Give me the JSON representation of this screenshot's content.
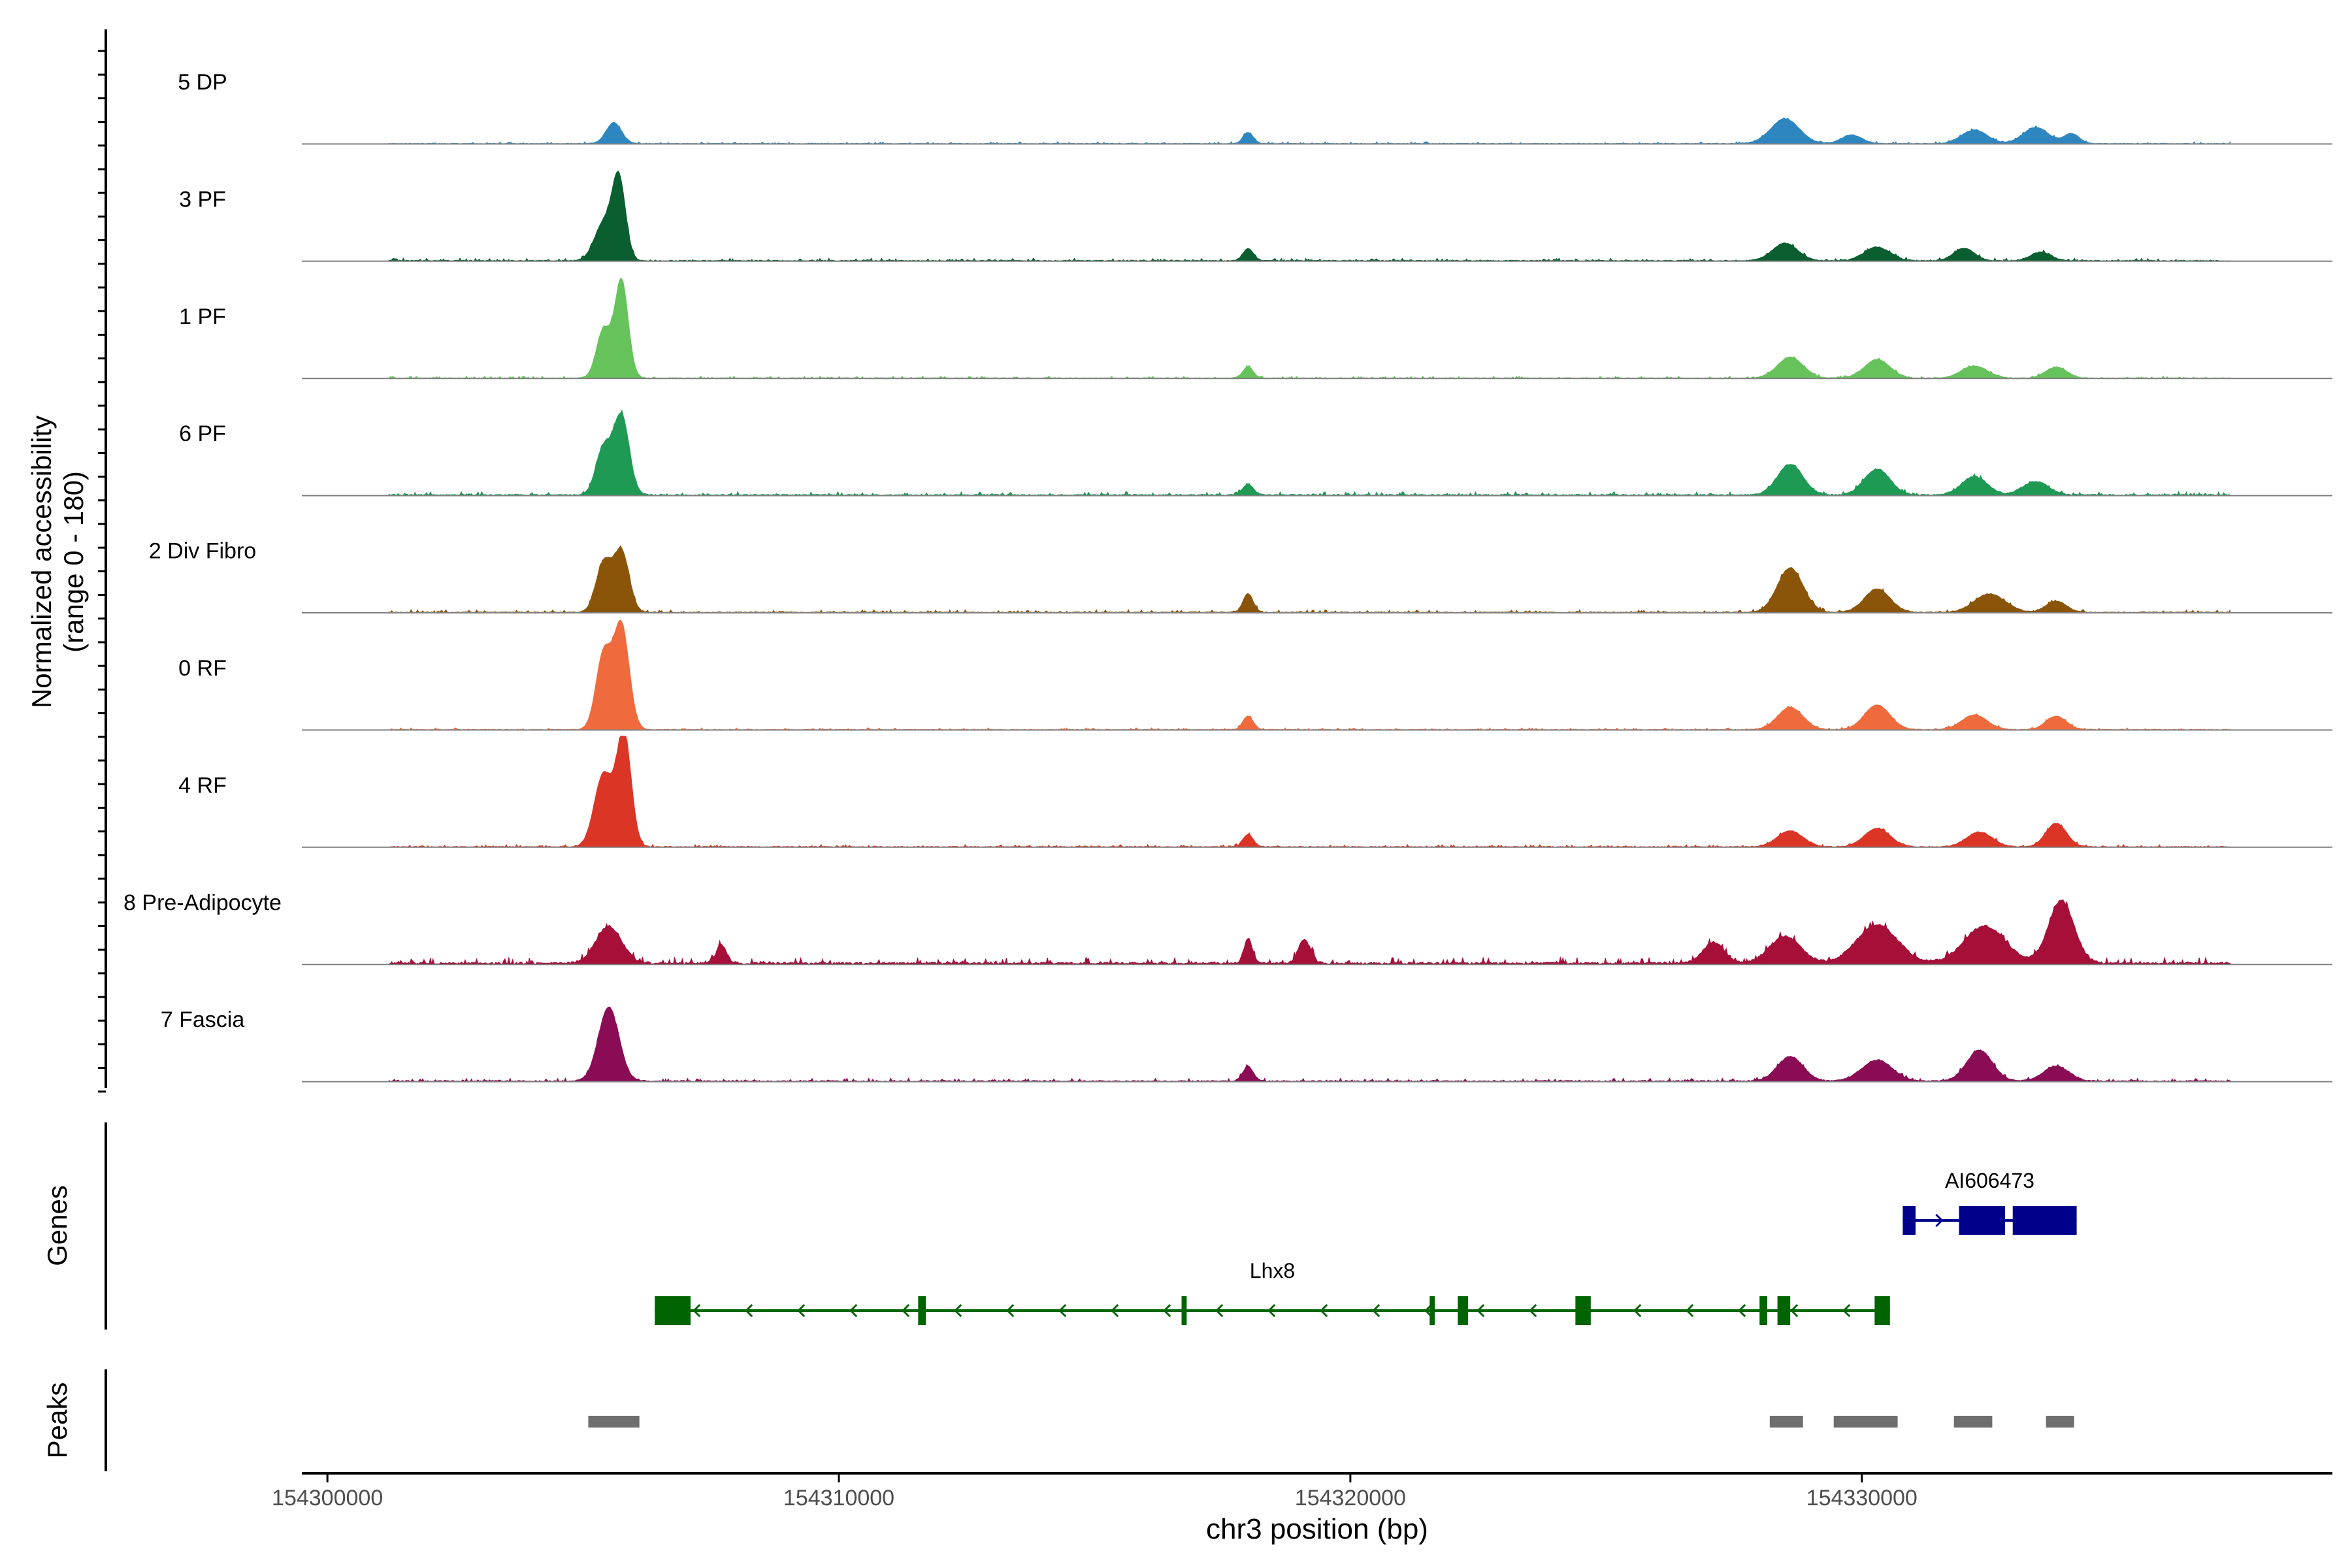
{
  "chart_data": {
    "type": "area",
    "title": "",
    "xlabel": "chr3 position (bp)",
    "ylabel_line1": "Normalized accessibility",
    "ylabel_line2": "(range 0 - 180)",
    "ylim": [
      0,
      180
    ],
    "xlim": [
      154299500,
      154339200
    ],
    "xticks": [
      154300000,
      154310000,
      154320000,
      154330000
    ],
    "xtick_labels": [
      "154300000",
      "154310000",
      "154320000",
      "154330000"
    ],
    "region": {
      "start": 154299500,
      "end": 154337200
    },
    "genes_label": "Genes",
    "peaks_label": "Peaks",
    "tracks": [
      {
        "name": "5 DP",
        "color": "#2e86c1",
        "peaks": [
          [
            154305600,
            34,
            150
          ],
          [
            154318000,
            18,
            100
          ],
          [
            154328500,
            40,
            280
          ],
          [
            154329800,
            14,
            200
          ],
          [
            154332200,
            22,
            250
          ],
          [
            154333400,
            26,
            250
          ],
          [
            154334100,
            16,
            150
          ]
        ],
        "noise": 5
      },
      {
        "name": "3 PF",
        "color": "#0b5e2f",
        "peaks": [
          [
            154305400,
            60,
            180
          ],
          [
            154305700,
            128,
            130
          ],
          [
            154318000,
            20,
            100
          ],
          [
            154328500,
            28,
            250
          ],
          [
            154330300,
            22,
            250
          ],
          [
            154332000,
            20,
            200
          ],
          [
            154333500,
            14,
            200
          ]
        ],
        "noise": 7
      },
      {
        "name": "1 PF",
        "color": "#66c25b",
        "peaks": [
          [
            154305400,
            78,
            140
          ],
          [
            154305750,
            158,
            130
          ],
          [
            154318000,
            18,
            100
          ],
          [
            154328600,
            34,
            250
          ],
          [
            154330300,
            30,
            250
          ],
          [
            154332200,
            20,
            250
          ],
          [
            154333800,
            18,
            200
          ]
        ],
        "noise": 5
      },
      {
        "name": "6 PF",
        "color": "#1f9a55",
        "peaks": [
          [
            154305400,
            76,
            150
          ],
          [
            154305750,
            128,
            150
          ],
          [
            154318000,
            18,
            100
          ],
          [
            154328600,
            50,
            250
          ],
          [
            154330300,
            42,
            250
          ],
          [
            154332200,
            30,
            250
          ],
          [
            154333400,
            22,
            250
          ]
        ],
        "noise": 9
      },
      {
        "name": "2 Div Fibro",
        "color": "#8b5509",
        "peaks": [
          [
            154305400,
            80,
            150
          ],
          [
            154305750,
            98,
            150
          ],
          [
            154318000,
            30,
            100
          ],
          [
            154328600,
            72,
            250
          ],
          [
            154330300,
            38,
            250
          ],
          [
            154332500,
            30,
            300
          ],
          [
            154333800,
            18,
            200
          ]
        ],
        "noise": 7
      },
      {
        "name": "0 RF",
        "color": "#ef6a3c",
        "peaks": [
          [
            154305400,
            122,
            150
          ],
          [
            154305750,
            168,
            150
          ],
          [
            154318000,
            22,
            100
          ],
          [
            154328600,
            36,
            250
          ],
          [
            154330300,
            40,
            250
          ],
          [
            154332200,
            24,
            250
          ],
          [
            154333800,
            22,
            200
          ]
        ],
        "noise": 5
      },
      {
        "name": "4 RF",
        "color": "#db3526",
        "peaks": [
          [
            154305400,
            118,
            180
          ],
          [
            154305800,
            180,
            140
          ],
          [
            154318000,
            20,
            100
          ],
          [
            154328600,
            26,
            250
          ],
          [
            154330300,
            30,
            250
          ],
          [
            154332300,
            24,
            250
          ],
          [
            154333800,
            38,
            200
          ]
        ],
        "noise": 6
      },
      {
        "name": "8 Pre-Adipocyte",
        "color": "#a50f38",
        "peaks": [
          [
            154305500,
            60,
            250
          ],
          [
            154307700,
            30,
            100
          ],
          [
            154318000,
            40,
            80
          ],
          [
            154319100,
            38,
            120
          ],
          [
            154327100,
            34,
            200
          ],
          [
            154328500,
            44,
            300
          ],
          [
            154330300,
            62,
            400
          ],
          [
            154332400,
            60,
            400
          ],
          [
            154333900,
            102,
            250
          ]
        ],
        "noise": 16
      },
      {
        "name": "7 Fascia",
        "color": "#8a0c55",
        "peaks": [
          [
            154305500,
            120,
            200
          ],
          [
            154318000,
            24,
            100
          ],
          [
            154328600,
            40,
            250
          ],
          [
            154330300,
            34,
            300
          ],
          [
            154332300,
            50,
            250
          ],
          [
            154333800,
            24,
            250
          ]
        ],
        "noise": 8
      }
    ],
    "genes": [
      {
        "name": "AI606473",
        "color": "#00008b",
        "strand": "+",
        "start": 154330800,
        "end": 154334200,
        "exons": [
          [
            154330800,
            154331050
          ],
          [
            154331900,
            154332800
          ],
          [
            154332950,
            154334200
          ]
        ]
      },
      {
        "name": "Lhx8",
        "color": "#006400",
        "strand": "-",
        "start": 154306400,
        "end": 154330550,
        "exons": [
          [
            154306400,
            154307100
          ],
          [
            154311550,
            154311700
          ],
          [
            154316700,
            154316800
          ],
          [
            154321550,
            154321650
          ],
          [
            154322100,
            154322300
          ],
          [
            154324400,
            154324700
          ],
          [
            154328000,
            154328150
          ],
          [
            154328350,
            154328600
          ],
          [
            154330250,
            154330550
          ]
        ]
      }
    ],
    "peak_regions": [
      [
        154305100,
        154306100
      ],
      [
        154328200,
        154328850
      ],
      [
        154329450,
        154330700
      ],
      [
        154331800,
        154332550
      ],
      [
        154333600,
        154334150
      ]
    ]
  }
}
